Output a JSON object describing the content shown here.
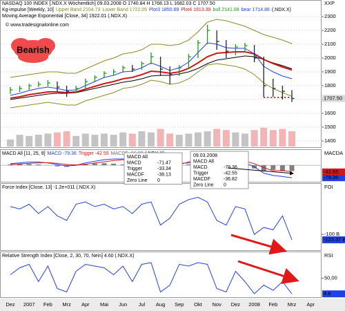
{
  "chart_data": [
    {
      "type": "ohlc",
      "header": [
        [
          {
            "text": "NASDAQ 100 INDEX [.NDX.X Wöchentlich] 09.03.2008 O 1740.84 H 1768.13 L 1682.03 C 1707.50",
            "color": "#000000"
          }
        ],
        [
          {
            "text": "Kg-impulse [Weekly, 10]",
            "color": "#000000"
          },
          {
            "text": "Upper Band 2104.73",
            "color": "#8a8a2a"
          },
          {
            "text": "Lower Band 1722.05",
            "color": "#8a8a2a"
          },
          {
            "text": "Plot3 1850.69",
            "color": "#2040e0"
          },
          {
            "text": "Plot4 1913.39",
            "color": "#d01818"
          },
          {
            "text": "bull 2141.08",
            "color": "#1a9a1a"
          },
          {
            "text": "bear 1714.86",
            "color": "#2040e0"
          },
          {
            "text": "(.NDX.X)",
            "color": "#000000"
          }
        ],
        [
          {
            "text": "Moving Average Exponential [Close, 34] 1922.01 (.NDX.X)",
            "color": "#000000"
          }
        ]
      ],
      "copyright": "© www.tradesignalonline.com",
      "annotation": "Bearish",
      "axis_name": "XXP",
      "ylim": [
        1360,
        2410
      ],
      "yticks": [
        1400,
        1500,
        1600,
        1700,
        1800,
        1900,
        2000,
        2100,
        2200,
        2300
      ],
      "grid": true,
      "last_label": "1707.50",
      "up_color": "#1a9a1a",
      "down_color": "#222222",
      "high": [
        1790,
        1800,
        1815,
        1830,
        1840,
        1830,
        1800,
        1800,
        1850,
        1875,
        1905,
        1920,
        1945,
        1950,
        1975,
        2040,
        2010,
        1940,
        1950,
        2030,
        2130,
        2240,
        2200,
        2130,
        2100,
        2110,
        2095,
        2010,
        1850,
        1800,
        1768.13,
        null,
        null,
        null
      ],
      "low": [
        1740,
        1755,
        1770,
        1790,
        1795,
        1760,
        1720,
        1750,
        1775,
        1825,
        1855,
        1875,
        1895,
        1900,
        1915,
        1955,
        1870,
        1810,
        1870,
        1920,
        2000,
        2100,
        2060,
        2000,
        2020,
        2040,
        1970,
        1720,
        1720,
        1700,
        1682.03,
        null,
        null,
        null
      ],
      "close": [
        1770,
        1780,
        1800,
        1810,
        1820,
        1790,
        1760,
        1780,
        1830,
        1860,
        1890,
        1900,
        1930,
        1920,
        1960,
        2010,
        1920,
        1880,
        1930,
        2010,
        2110,
        2200,
        2120,
        2050,
        2080,
        2090,
        2000,
        1800,
        1780,
        1760,
        1707.5,
        null,
        null,
        null
      ],
      "series": [
        {
          "color": "#8a8a2a",
          "width": 1,
          "values": [
            1860,
            1870,
            1880,
            1890,
            1900,
            1900,
            1890,
            1890,
            1920,
            1950,
            1980,
            2000,
            2030,
            2040,
            2060,
            2100,
            2100,
            2090,
            2100,
            2130,
            2190,
            2260,
            2280,
            2270,
            2250,
            2230,
            2200,
            2170,
            2150,
            2130,
            2104.73,
            null,
            null,
            null
          ]
        },
        {
          "color": "#8a8a2a",
          "width": 1,
          "values": [
            1640,
            1650,
            1660,
            1670,
            1680,
            1670,
            1660,
            1660,
            1690,
            1710,
            1730,
            1750,
            1780,
            1790,
            1810,
            1840,
            1830,
            1810,
            1820,
            1850,
            1900,
            1950,
            1960,
            1950,
            1940,
            1920,
            1880,
            1820,
            1780,
            1750,
            1722.05,
            null,
            null,
            null
          ]
        },
        {
          "color": "#000000",
          "width": 1,
          "values": [
            1700,
            1710,
            1720,
            1730,
            1740,
            1745,
            1745,
            1750,
            1765,
            1780,
            1795,
            1810,
            1825,
            1835,
            1850,
            1870,
            1875,
            1875,
            1885,
            1900,
            1925,
            1960,
            1985,
            1995,
            2005,
            2015,
            2010,
            1990,
            1965,
            1945,
            1922.01,
            null,
            null,
            null
          ]
        },
        {
          "color": "#d01818",
          "width": 2,
          "values": [
            1710,
            1720,
            1735,
            1745,
            1755,
            1755,
            1750,
            1755,
            1775,
            1795,
            1815,
            1830,
            1850,
            1860,
            1880,
            1905,
            1900,
            1890,
            1900,
            1925,
            1965,
            2010,
            2035,
            2040,
            2045,
            2045,
            2030,
            1990,
            1960,
            1935,
            1913.39,
            null,
            null,
            null
          ]
        },
        {
          "color": "#2040e0",
          "width": 1,
          "values": [
            1730,
            1745,
            1765,
            1780,
            1790,
            1780,
            1765,
            1770,
            1800,
            1830,
            1860,
            1875,
            1900,
            1905,
            1930,
            1965,
            1940,
            1910,
            1930,
            1970,
            2040,
            2110,
            2100,
            2075,
            2070,
            2070,
            2030,
            1940,
            1900,
            1870,
            1850.69,
            null,
            null,
            null
          ]
        }
      ],
      "bear_stop": {
        "color": "#e02020",
        "values": [
          null,
          null,
          null,
          null,
          null,
          null,
          null,
          null,
          null,
          null,
          null,
          null,
          null,
          null,
          null,
          null,
          null,
          null,
          null,
          null,
          null,
          null,
          null,
          null,
          null,
          null,
          null,
          1714.86,
          1714.86,
          1714.86,
          1714.86,
          null,
          null,
          null
        ]
      },
      "volume": {
        "ylim": [
          0,
          100
        ],
        "up_color": "#c4c4c4",
        "down_color": "#f2b4b4",
        "values": [
          30,
          50,
          45,
          50,
          55,
          60,
          65,
          45,
          55,
          50,
          55,
          50,
          60,
          55,
          65,
          60,
          75,
          55,
          50,
          55,
          60,
          65,
          75,
          70,
          60,
          55,
          70,
          80,
          70,
          75,
          65,
          null,
          null,
          null
        ]
      }
    },
    {
      "type": "macd",
      "header": [
        [
          {
            "text": "MACD All [11, 25, 9]",
            "color": "#000000"
          },
          {
            "text": "MACD -79.36",
            "color": "#2040e0"
          },
          {
            "text": "Trigger -42.55",
            "color": "#d01818"
          },
          {
            "text": "MACDF -36.82",
            "color": "#666666"
          },
          {
            "text": "(.NDX.X)",
            "color": "#000000"
          }
        ]
      ],
      "axis_name": "MACDA",
      "ylim": [
        -105,
        97
      ],
      "histogram": {
        "color": "#808080",
        "values": [
          5,
          7,
          8,
          5,
          -1,
          -7,
          -10,
          -2,
          9,
          11,
          13,
          10,
          5,
          -1,
          -1,
          2,
          -12,
          -20,
          -7,
          5,
          17,
          18,
          4,
          -10,
          -12,
          -10,
          -20,
          -35,
          -30,
          -38.13,
          -36.82,
          null,
          null,
          null
        ]
      },
      "series": [
        {
          "color": "#2040e0",
          "width": 1,
          "values": [
            10,
            15,
            20,
            20,
            15,
            5,
            -5,
            0,
            15,
            25,
            35,
            40,
            40,
            35,
            35,
            40,
            20,
            0,
            5,
            20,
            45,
            60,
            50,
            30,
            20,
            15,
            -10,
            -50,
            -65,
            -71.47,
            -79.36,
            null,
            null,
            null
          ]
        },
        {
          "color": "#d01818",
          "width": 1,
          "values": [
            5,
            8,
            12,
            15,
            16,
            12,
            5,
            2,
            6,
            14,
            22,
            30,
            35,
            36,
            36,
            38,
            32,
            20,
            12,
            15,
            28,
            42,
            46,
            40,
            32,
            25,
            10,
            -15,
            -35,
            -33.34,
            -42.55,
            null,
            null,
            null
          ]
        }
      ],
      "tooltips": [
        {
          "rows": [
            [
              "MACD All"
            ],
            [
              "MACD",
              -71.47
            ],
            [
              "Trigger",
              -33.34
            ],
            [
              "MACDF",
              -38.13
            ],
            [
              "Zero Line",
              0
            ]
          ]
        },
        {
          "rows": [
            [
              "09.03.2008"
            ],
            [
              "MACD All"
            ],
            [
              "MACD",
              -79.36
            ],
            [
              "Trigger",
              -42.55
            ],
            [
              "MACDF",
              -36.82
            ],
            [
              "Zero Line",
              0
            ]
          ]
        }
      ]
    },
    {
      "type": "line",
      "header": [
        [
          {
            "text": "Force Index [Close, 13] -1.2e+011 (.NDX.X)",
            "color": "#000000"
          }
        ]
      ],
      "axis_name": "FOI",
      "ylim": [
        -168,
        118
      ],
      "yticks": [
        {
          "value": -100,
          "label": "-100 B"
        }
      ],
      "last_label": "-123.37 B",
      "series": [
        {
          "color": "#2040e0",
          "width": 1,
          "values": [
            20,
            10,
            30,
            -10,
            20,
            -20,
            -40,
            30,
            40,
            20,
            30,
            10,
            20,
            -10,
            30,
            40,
            -60,
            -30,
            30,
            50,
            60,
            40,
            -40,
            -60,
            20,
            10,
            -100,
            -70,
            -80,
            -20,
            -123.37,
            null,
            null,
            null
          ]
        }
      ]
    },
    {
      "type": "line",
      "header": [
        [
          {
            "text": "Relative Strength Index [Close, 2, 30, 70, Nein] 4.60 (.NDX.X)",
            "color": "#000000"
          }
        ]
      ],
      "axis_name": "RSI",
      "ylim": [
        -5,
        125
      ],
      "yticks": [
        {
          "value": 50,
          "label": "50,00"
        }
      ],
      "series": [
        {
          "color": "#2040e0",
          "width": 1,
          "values": [
            60,
            80,
            90,
            40,
            85,
            20,
            10,
            70,
            90,
            85,
            80,
            60,
            85,
            40,
            90,
            95,
            10,
            30,
            90,
            85,
            95,
            90,
            20,
            10,
            70,
            40,
            5,
            30,
            15,
            40,
            4.6,
            null,
            null,
            null
          ]
        }
      ],
      "categories": [
        "Dez",
        null,
        "2007",
        null,
        "Feb",
        null,
        "Mrz",
        null,
        "Apr",
        null,
        "Mai",
        null,
        "Jun",
        null,
        "Jul",
        null,
        "Aug",
        null,
        "Sep",
        null,
        "Okt",
        null,
        "Nov",
        null,
        "Dez",
        null,
        "2008",
        null,
        "Feb",
        null,
        "Mrz",
        null,
        "Apr",
        null
      ]
    }
  ]
}
